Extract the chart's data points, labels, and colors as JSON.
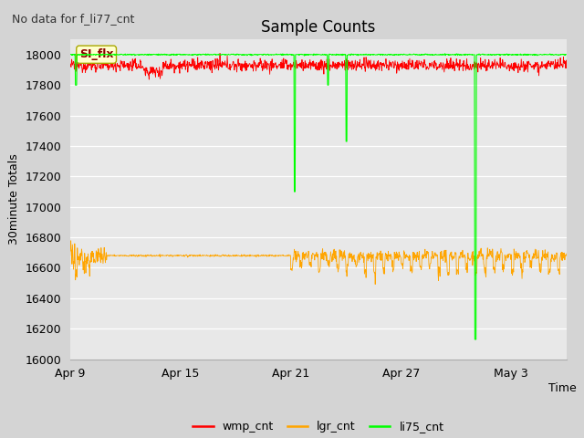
{
  "title": "Sample Counts",
  "subtitle": "No data for f_li77_cnt",
  "ylabel": "30minute Totals",
  "xlabel": "Time",
  "annotation": "SI_flx",
  "bg_color": "#d4d4d4",
  "plot_bg_color": "#e8e8e8",
  "ylim": [
    16000,
    18100
  ],
  "yticks": [
    16000,
    16200,
    16400,
    16600,
    16800,
    17000,
    17200,
    17400,
    17600,
    17800,
    18000
  ],
  "xtick_positions": [
    0,
    6,
    12,
    18,
    24
  ],
  "xtick_labels": [
    "Apr 9",
    "Apr 15",
    "Apr 21",
    "Apr 27",
    "May 3"
  ],
  "xlim": [
    0,
    27
  ],
  "wmp_base": 17930,
  "wmp_noise": 20,
  "lgr_base": 16680,
  "lgr_noise": 15,
  "li75_base": 18000,
  "wmp_color": "#ff0000",
  "lgr_color": "#ffa500",
  "li75_color": "#00ff00",
  "annotation_color": "#8b0000",
  "annotation_bg": "#ffffcc",
  "annotation_edge": "#aaa800",
  "legend_labels": [
    "wmp_cnt",
    "lgr_cnt",
    "li75_cnt"
  ],
  "legend_colors": [
    "#ff0000",
    "#ffa500",
    "#00ff00"
  ]
}
